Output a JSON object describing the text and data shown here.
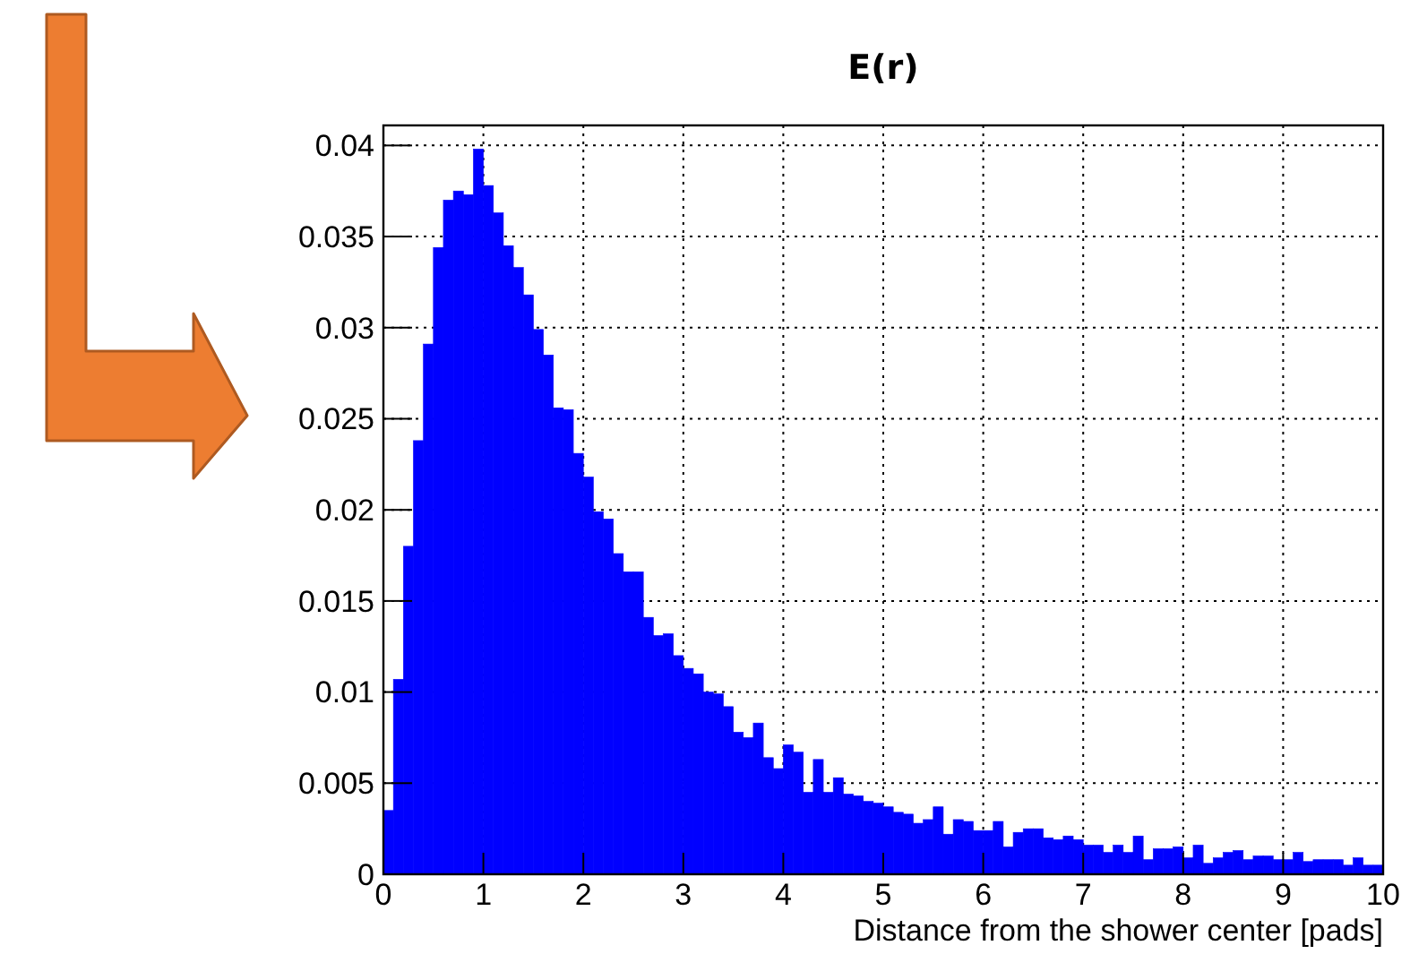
{
  "chart_data": {
    "type": "histogram",
    "title": "E(r)",
    "xlabel": "Distance from the shower center [pads]",
    "color": "#0000ff",
    "bins": [
      0,
      0.1,
      0.2,
      0.3,
      0.4,
      0.5,
      0.6,
      0.7,
      0.8,
      0.9,
      1,
      1.1,
      1.2,
      1.3,
      1.4,
      1.5,
      1.6,
      1.7,
      1.8,
      1.9,
      2,
      2.1,
      2.2,
      2.3,
      2.4,
      2.5,
      2.6,
      2.7,
      2.8,
      2.9,
      3,
      3.1,
      3.2,
      3.3,
      3.4,
      3.5,
      3.6,
      3.7,
      3.8,
      3.9,
      4,
      4.1,
      4.2,
      4.3,
      4.4,
      4.5,
      4.6,
      4.7,
      4.8,
      4.9,
      5,
      5.1,
      5.2,
      5.3,
      5.4,
      5.5,
      5.6,
      5.7,
      5.8,
      5.9,
      6,
      6.1,
      6.2,
      6.3,
      6.4,
      6.5,
      6.6,
      6.7,
      6.8,
      6.9,
      7,
      7.1,
      7.2,
      7.3,
      7.4,
      7.5,
      7.6,
      7.7,
      7.8,
      7.9,
      8,
      8.1,
      8.2,
      8.3,
      8.4,
      8.5,
      8.6,
      8.7,
      8.8,
      8.9,
      9,
      9.1,
      9.2,
      9.3,
      9.4,
      9.5,
      9.6,
      9.7,
      9.8,
      9.9,
      10
    ],
    "values": [
      0.0035,
      0.0107,
      0.018,
      0.0238,
      0.0291,
      0.0344,
      0.037,
      0.0375,
      0.0373,
      0.0398,
      0.0378,
      0.0363,
      0.0345,
      0.0333,
      0.0318,
      0.0299,
      0.0285,
      0.0256,
      0.0255,
      0.0231,
      0.0218,
      0.0199,
      0.0195,
      0.0176,
      0.0166,
      0.0166,
      0.0141,
      0.0131,
      0.0132,
      0.012,
      0.0113,
      0.011,
      0.01,
      0.0099,
      0.0092,
      0.0078,
      0.0075,
      0.0083,
      0.0064,
      0.0058,
      0.0071,
      0.0067,
      0.0045,
      0.0063,
      0.0045,
      0.0053,
      0.0044,
      0.0043,
      0.004,
      0.0039,
      0.0037,
      0.0034,
      0.0033,
      0.0028,
      0.003,
      0.0037,
      0.0022,
      0.003,
      0.0029,
      0.0024,
      0.0024,
      0.0029,
      0.0015,
      0.0023,
      0.0025,
      0.0025,
      0.002,
      0.0019,
      0.0021,
      0.0019,
      0.0016,
      0.0016,
      0.0012,
      0.0016,
      0.0012,
      0.0021,
      0.0008,
      0.0014,
      0.0014,
      0.0015,
      0.0009,
      0.0016,
      0.0006,
      0.0009,
      0.0012,
      0.0013,
      0.0008,
      0.001,
      0.001,
      0.0008,
      0.0008,
      0.0012,
      0.0007,
      0.0008,
      0.0008,
      0.0008,
      0.0005,
      0.0009,
      0.0005,
      0.0005
    ],
    "xlim": [
      0,
      10
    ],
    "xticks": [
      0,
      1,
      2,
      3,
      4,
      5,
      6,
      7,
      8,
      9,
      10
    ],
    "ylim": [
      0,
      0.0411
    ],
    "yticks": [
      0,
      0.005,
      0.01,
      0.015,
      0.02,
      0.025,
      0.03,
      0.035,
      0.04
    ],
    "grid": true
  }
}
